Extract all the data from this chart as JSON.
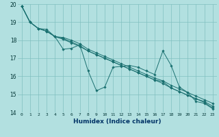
{
  "title": "",
  "xlabel": "Humidex (Indice chaleur)",
  "bg_color": "#b2e0e0",
  "grid_color": "#80c0c0",
  "line_color": "#1a7070",
  "xlim": [
    -0.5,
    23.5
  ],
  "ylim": [
    14,
    20
  ],
  "x_ticks": [
    0,
    1,
    2,
    3,
    4,
    5,
    6,
    7,
    8,
    9,
    10,
    11,
    12,
    13,
    14,
    15,
    16,
    17,
    18,
    19,
    20,
    21,
    22,
    23
  ],
  "y_ticks": [
    14,
    15,
    16,
    17,
    18,
    19,
    20
  ],
  "series": [
    [
      19.9,
      19.0,
      18.65,
      18.6,
      18.2,
      17.5,
      17.55,
      17.75,
      16.3,
      15.2,
      15.4,
      16.5,
      16.55,
      16.6,
      16.5,
      16.3,
      16.1,
      17.4,
      16.6,
      15.4,
      15.1,
      14.6,
      14.5,
      14.2
    ],
    [
      19.9,
      19.0,
      18.65,
      18.5,
      18.2,
      18.15,
      18.0,
      17.8,
      17.5,
      17.3,
      17.1,
      16.9,
      16.7,
      16.5,
      16.3,
      16.1,
      15.9,
      15.75,
      15.5,
      15.3,
      15.1,
      14.9,
      14.7,
      14.5
    ],
    [
      19.9,
      19.0,
      18.65,
      18.5,
      18.2,
      18.1,
      17.9,
      17.7,
      17.4,
      17.2,
      17.0,
      16.8,
      16.6,
      16.4,
      16.2,
      16.0,
      15.8,
      15.6,
      15.35,
      15.15,
      14.95,
      14.75,
      14.6,
      14.35
    ],
    [
      19.9,
      19.0,
      18.65,
      18.5,
      18.2,
      18.05,
      17.85,
      17.65,
      17.4,
      17.2,
      17.0,
      16.8,
      16.6,
      16.4,
      16.2,
      16.0,
      15.8,
      15.7,
      15.35,
      15.15,
      14.95,
      14.75,
      14.55,
      14.25
    ]
  ]
}
